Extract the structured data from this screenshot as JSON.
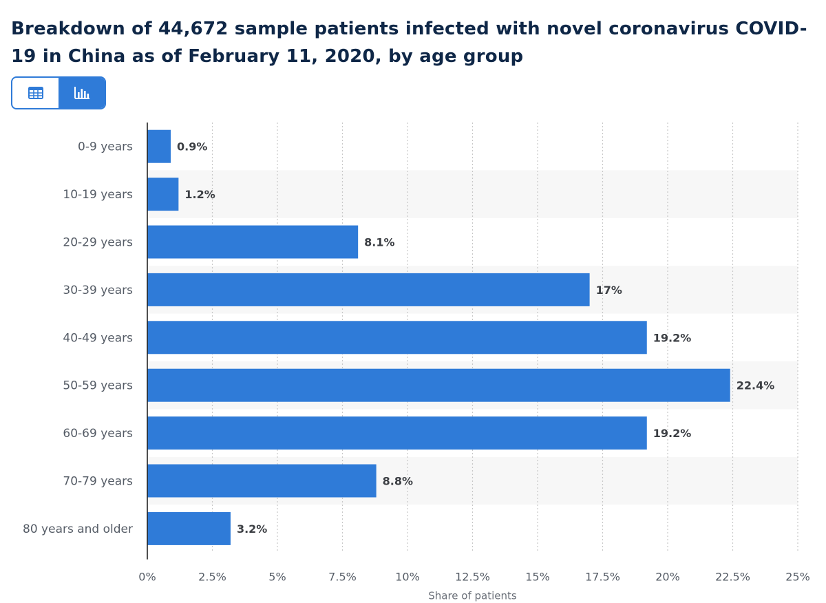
{
  "header": {
    "title": "Breakdown of 44,672 sample patients infected with novel coronavirus COVID-19 in China as of February 11, 2020, by age group"
  },
  "view_toggle": {
    "table_icon": "table-icon",
    "chart_icon": "bar-chart-icon",
    "active": "chart"
  },
  "colors": {
    "bar": "#2f7bd8",
    "band": "#f7f7f7",
    "grid": "#c8c8c8",
    "axis": "#222222"
  },
  "chart_data": {
    "type": "bar",
    "orientation": "horizontal",
    "title": "Breakdown of 44,672 sample patients infected with novel coronavirus COVID-19 in China as of February 11, 2020, by age group",
    "categories": [
      "0-9 years",
      "10-19 years",
      "20-29 years",
      "30-39 years",
      "40-49 years",
      "50-59 years",
      "60-69 years",
      "70-79 years",
      "80 years and older"
    ],
    "values": [
      0.9,
      1.2,
      8.1,
      17,
      19.2,
      22.4,
      19.2,
      8.8,
      3.2
    ],
    "value_labels": [
      "0.9%",
      "1.2%",
      "8.1%",
      "17%",
      "19.2%",
      "22.4%",
      "19.2%",
      "8.8%",
      "3.2%"
    ],
    "xlabel": "Share of patients",
    "ylabel": "",
    "xlim": [
      0,
      25
    ],
    "ticks": [
      0,
      2.5,
      5,
      7.5,
      10,
      12.5,
      15,
      17.5,
      20,
      22.5,
      25
    ],
    "tick_labels": [
      "0%",
      "2.5%",
      "5%",
      "7.5%",
      "10%",
      "12.5%",
      "15%",
      "17.5%",
      "20%",
      "22.5%",
      "25%"
    ],
    "grid": true,
    "legend": "none"
  }
}
